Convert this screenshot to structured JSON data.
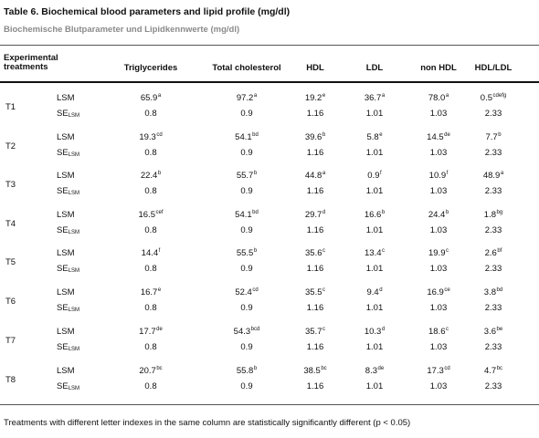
{
  "table": {
    "title": "Table 6. Biochemical blood parameters and lipid profile (mg/dl)",
    "subtitle": "Biochemische Blutparameter und Lipidkennwerte (mg/dl)",
    "header_experimental": "Experimental treatments",
    "columns": [
      "Triglycerides",
      "Total cholesterol",
      "HDL",
      "LDL",
      "non HDL",
      "HDL/LDL"
    ],
    "stat_lsm": "LSM",
    "stat_se_main": "SE",
    "stat_se_sub": "LSM",
    "se_values": [
      "0.8",
      "0.9",
      "1.16",
      "1.01",
      "1.03",
      "2.33"
    ],
    "rows": [
      {
        "treatment": "T1",
        "lsm": [
          [
            "65.9",
            "a"
          ],
          [
            "97.2",
            "a"
          ],
          [
            "19.2",
            "e"
          ],
          [
            "36.7",
            "a"
          ],
          [
            "78.0",
            "a"
          ],
          [
            "0.5",
            "cdefg"
          ]
        ]
      },
      {
        "treatment": "T2",
        "lsm": [
          [
            "19.3",
            "cd"
          ],
          [
            "54.1",
            "bd"
          ],
          [
            "39.6",
            "b"
          ],
          [
            "5.8",
            "e"
          ],
          [
            "14.5",
            "de"
          ],
          [
            "7.7",
            "b"
          ]
        ]
      },
      {
        "treatment": "T3",
        "lsm": [
          [
            "22.4",
            "b"
          ],
          [
            "55.7",
            "b"
          ],
          [
            "44.8",
            "a"
          ],
          [
            "0.9",
            "f"
          ],
          [
            "10.9",
            "f"
          ],
          [
            "48.9",
            "a"
          ]
        ]
      },
      {
        "treatment": "T4",
        "lsm": [
          [
            "16.5",
            "cef"
          ],
          [
            "54.1",
            "bd"
          ],
          [
            "29.7",
            "d"
          ],
          [
            "16.6",
            "b"
          ],
          [
            "24.4",
            "b"
          ],
          [
            "1.8",
            "bg"
          ]
        ]
      },
      {
        "treatment": "T5",
        "lsm": [
          [
            "14.4",
            "f"
          ],
          [
            "55.5",
            "b"
          ],
          [
            "35.6",
            "c"
          ],
          [
            "13.4",
            "c"
          ],
          [
            "19.9",
            "c"
          ],
          [
            "2.6",
            "bf"
          ]
        ]
      },
      {
        "treatment": "T6",
        "lsm": [
          [
            "16.7",
            "e"
          ],
          [
            "52.4",
            "cd"
          ],
          [
            "35.5",
            "c"
          ],
          [
            "9.4",
            "d"
          ],
          [
            "16.9",
            "ce"
          ],
          [
            "3.8",
            "bd"
          ]
        ]
      },
      {
        "treatment": "T7",
        "lsm": [
          [
            "17.7",
            "de"
          ],
          [
            "54.3",
            "bcd"
          ],
          [
            "35.7",
            "c"
          ],
          [
            "10.3",
            "d"
          ],
          [
            "18.6",
            "c"
          ],
          [
            "3.6",
            "be"
          ]
        ]
      },
      {
        "treatment": "T8",
        "lsm": [
          [
            "20.7",
            "bc"
          ],
          [
            "55.8",
            "b"
          ],
          [
            "38.5",
            "bc"
          ],
          [
            "8.3",
            "de"
          ],
          [
            "17.3",
            "cd"
          ],
          [
            "4.7",
            "bc"
          ]
        ]
      }
    ],
    "footnote": "Treatments with different letter indexes in the same column are statistically significantly different (p < 0.05)"
  }
}
